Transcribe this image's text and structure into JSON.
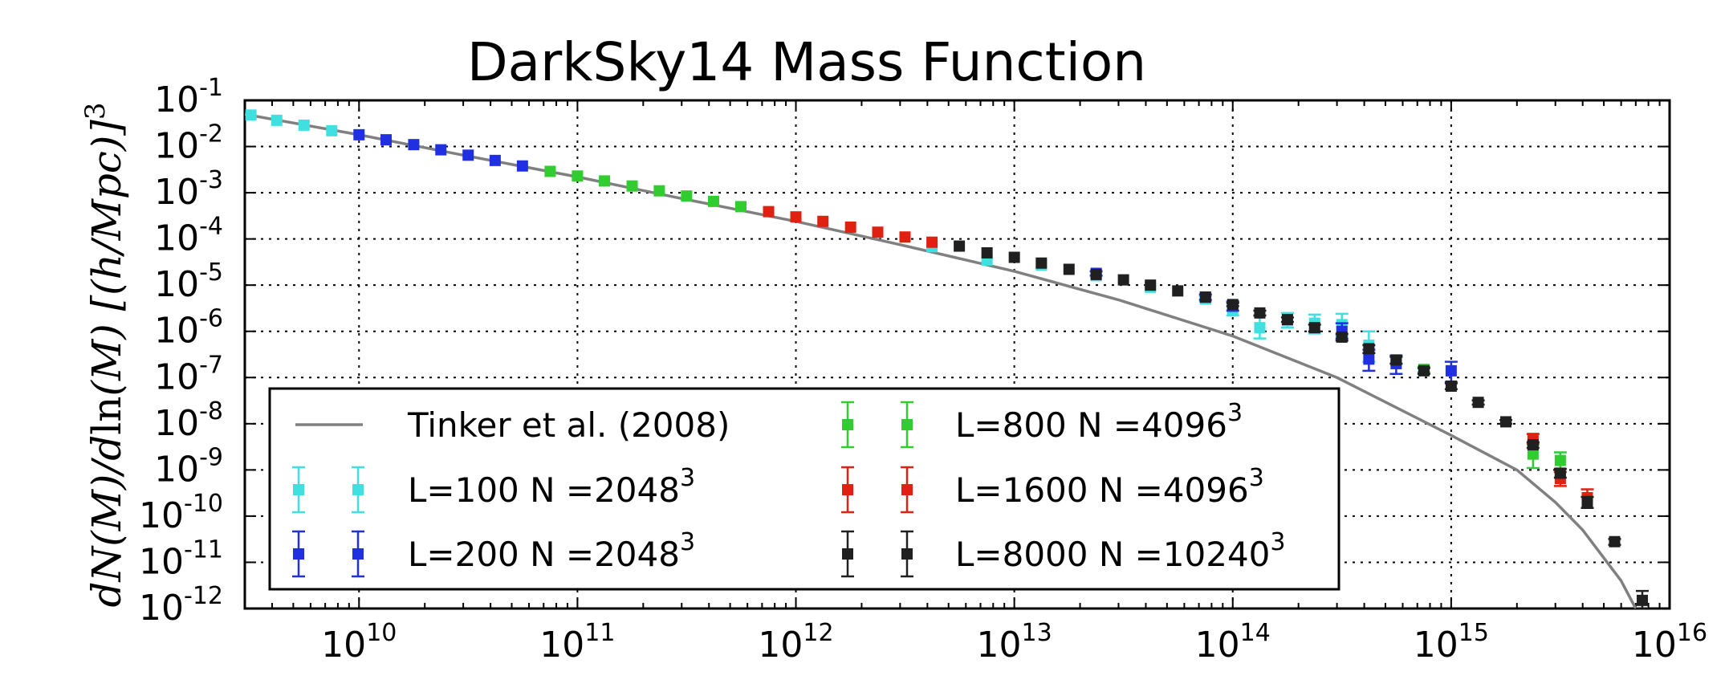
{
  "chart_data": {
    "type": "scatter",
    "title": "DarkSky14 Mass Function",
    "ylabel": {
      "parts": [
        "dN(M)/d",
        "ln",
        "(M) [(h/Mpc)]",
        "3"
      ]
    },
    "xlabel": "",
    "log_x": true,
    "log_y": true,
    "xlim": [
      3000000000.0,
      1e+16
    ],
    "ylim": [
      1e-12,
      0.1
    ],
    "grid": true,
    "legend_position": "lower-left",
    "xticks": [
      {
        "base": "10",
        "exp": "10",
        "value": 10000000000.0
      },
      {
        "base": "10",
        "exp": "11",
        "value": 100000000000.0
      },
      {
        "base": "10",
        "exp": "12",
        "value": 1000000000000.0
      },
      {
        "base": "10",
        "exp": "13",
        "value": 10000000000000.0
      },
      {
        "base": "10",
        "exp": "14",
        "value": 100000000000000.0
      },
      {
        "base": "10",
        "exp": "15",
        "value": 1000000000000000.0
      },
      {
        "base": "10",
        "exp": "16",
        "value": 1e+16
      }
    ],
    "yticks": [
      {
        "base": "10",
        "exp": "-1",
        "value": 0.1
      },
      {
        "base": "10",
        "exp": "-2",
        "value": 0.01
      },
      {
        "base": "10",
        "exp": "-3",
        "value": 0.001
      },
      {
        "base": "10",
        "exp": "-4",
        "value": 0.0001
      },
      {
        "base": "10",
        "exp": "-5",
        "value": 1e-05
      },
      {
        "base": "10",
        "exp": "-6",
        "value": 1e-06
      },
      {
        "base": "10",
        "exp": "-7",
        "value": 1e-07
      },
      {
        "base": "10",
        "exp": "-8",
        "value": 1e-08
      },
      {
        "base": "10",
        "exp": "-9",
        "value": 1e-09
      },
      {
        "base": "10",
        "exp": "-10",
        "value": 1e-10
      },
      {
        "base": "10",
        "exp": "-11",
        "value": 1e-11
      },
      {
        "base": "10",
        "exp": "-12",
        "value": 1e-12
      }
    ],
    "model": {
      "name": "Tinker et al. (2008)",
      "color": "#808080",
      "x": [
        3000000000.0,
        10000000000.0,
        30000000000.0,
        100000000000.0,
        300000000000.0,
        1000000000000.0,
        3000000000000.0,
        10000000000000.0,
        30000000000000.0,
        100000000000000.0,
        300000000000000.0,
        1000000000000000.0,
        2000000000000000.0,
        3000000000000000.0,
        4000000000000000.0,
        6000000000000000.0,
        8000000000000000.0
      ],
      "y": [
        0.05,
        0.018,
        0.0065,
        0.0022,
        0.00075,
        0.00024,
        7.5e-05,
        2e-05,
        4.8e-06,
        7.9e-07,
        1e-07,
        5.6e-09,
        1e-09,
        2e-10,
        5e-11,
        4e-12,
        3e-13
      ]
    },
    "series": [
      {
        "name": "L=100 N =2048",
        "name_exp": "3",
        "color": "#40e0e0",
        "points": [
          {
            "x": 3200000000.0,
            "y": 0.048,
            "lo": 0.048,
            "hi": 0.048
          },
          {
            "x": 4200000000.0,
            "y": 0.037,
            "lo": 0.037,
            "hi": 0.037
          },
          {
            "x": 5600000000.0,
            "y": 0.029,
            "lo": 0.029,
            "hi": 0.029
          },
          {
            "x": 7500000000.0,
            "y": 0.022,
            "lo": 0.022,
            "hi": 0.022
          },
          {
            "x": 4200000000000.0,
            "y": 6.8e-05,
            "lo": 6.8e-05,
            "hi": 6.8e-05
          },
          {
            "x": 7500000000000.0,
            "y": 3.5e-05,
            "lo": 3.5e-05,
            "hi": 3.5e-05
          },
          {
            "x": 13300000000000.0,
            "y": 2.7e-05,
            "lo": 2.7e-05,
            "hi": 2.7e-05
          },
          {
            "x": 23700000000000.0,
            "y": 1.6e-05,
            "lo": 1.6e-05,
            "hi": 1.6e-05
          },
          {
            "x": 42000000000000.0,
            "y": 9e-06,
            "lo": 9e-06,
            "hi": 9e-06
          },
          {
            "x": 75000000000000.0,
            "y": 5e-06,
            "lo": 4.5e-06,
            "hi": 5.8e-06
          },
          {
            "x": 100000000000000.0,
            "y": 3e-06,
            "lo": 2.2e-06,
            "hi": 4.5e-06
          },
          {
            "x": 133000000000000.0,
            "y": 1.2e-06,
            "lo": 7e-07,
            "hi": 2.2e-06
          },
          {
            "x": 178000000000000.0,
            "y": 1.7e-06,
            "lo": 1.2e-06,
            "hi": 2.5e-06
          },
          {
            "x": 237000000000000.0,
            "y": 1.5e-06,
            "lo": 9e-07,
            "hi": 2.3e-06
          },
          {
            "x": 316000000000000.0,
            "y": 1.4e-06,
            "lo": 8e-07,
            "hi": 2.4e-06
          },
          {
            "x": 420000000000000.0,
            "y": 5e-07,
            "lo": 2.2e-07,
            "hi": 1e-06
          }
        ]
      },
      {
        "name": "L=200 N =2048",
        "name_exp": "3",
        "color": "#2030e0",
        "points": [
          {
            "x": 10000000000.0,
            "y": 0.018,
            "lo": 0.018,
            "hi": 0.018
          },
          {
            "x": 13300000000.0,
            "y": 0.014,
            "lo": 0.014,
            "hi": 0.014
          },
          {
            "x": 17800000000.0,
            "y": 0.011,
            "lo": 0.011,
            "hi": 0.011
          },
          {
            "x": 23700000000.0,
            "y": 0.0085,
            "lo": 0.0085,
            "hi": 0.0085
          },
          {
            "x": 31600000000.0,
            "y": 0.0065,
            "lo": 0.0065,
            "hi": 0.0065
          },
          {
            "x": 42000000000.0,
            "y": 0.005,
            "lo": 0.005,
            "hi": 0.005
          },
          {
            "x": 56000000000.0,
            "y": 0.0038,
            "lo": 0.0038,
            "hi": 0.0038
          },
          {
            "x": 23700000000000.0,
            "y": 1.8e-05,
            "lo": 1.6e-05,
            "hi": 2e-05
          },
          {
            "x": 75000000000000.0,
            "y": 5.5e-06,
            "lo": 4.8e-06,
            "hi": 6.3e-06
          },
          {
            "x": 100000000000000.0,
            "y": 3.5e-06,
            "lo": 2.8e-06,
            "hi": 4.4e-06
          },
          {
            "x": 316000000000000.0,
            "y": 1e-06,
            "lo": 7e-07,
            "hi": 1.5e-06
          },
          {
            "x": 420000000000000.0,
            "y": 2.5e-07,
            "lo": 1.4e-07,
            "hi": 4e-07
          },
          {
            "x": 560000000000000.0,
            "y": 2e-07,
            "lo": 1.2e-07,
            "hi": 3e-07
          },
          {
            "x": 1000000000000000.0,
            "y": 1.4e-07,
            "lo": 8e-08,
            "hi": 2.2e-07
          }
        ]
      },
      {
        "name": "L=800   N =4096",
        "name_exp": "3",
        "color": "#30cc30",
        "points": [
          {
            "x": 75000000000.0,
            "y": 0.0029,
            "lo": 0.0029,
            "hi": 0.0029
          },
          {
            "x": 100000000000.0,
            "y": 0.0023,
            "lo": 0.0023,
            "hi": 0.0023
          },
          {
            "x": 133000000000.0,
            "y": 0.0018,
            "lo": 0.0018,
            "hi": 0.0018
          },
          {
            "x": 178000000000.0,
            "y": 0.0014,
            "lo": 0.0014,
            "hi": 0.0014
          },
          {
            "x": 237000000000.0,
            "y": 0.0011,
            "lo": 0.0011,
            "hi": 0.0011
          },
          {
            "x": 316000000000.0,
            "y": 0.00085,
            "lo": 0.00085,
            "hi": 0.00085
          },
          {
            "x": 420000000000.0,
            "y": 0.00065,
            "lo": 0.00065,
            "hi": 0.00065
          },
          {
            "x": 560000000000.0,
            "y": 0.0005,
            "lo": 0.0005,
            "hi": 0.0005
          },
          {
            "x": 750000000000000.0,
            "y": 1.5e-07,
            "lo": 1.3e-07,
            "hi": 1.7e-07
          },
          {
            "x": 2370000000000000.0,
            "y": 2.2e-09,
            "lo": 1.1e-09,
            "hi": 3.5e-09
          },
          {
            "x": 3160000000000000.0,
            "y": 1.6e-09,
            "lo": 9e-10,
            "hi": 2.4e-09
          }
        ]
      },
      {
        "name": "L=1600 N =4096",
        "name_exp": "3",
        "color": "#e02010",
        "points": [
          {
            "x": 750000000000.0,
            "y": 0.00039,
            "lo": 0.00039,
            "hi": 0.00039
          },
          {
            "x": 1000000000000.0,
            "y": 0.0003,
            "lo": 0.0003,
            "hi": 0.0003
          },
          {
            "x": 1330000000000.0,
            "y": 0.00024,
            "lo": 0.00024,
            "hi": 0.00024
          },
          {
            "x": 1780000000000.0,
            "y": 0.00018,
            "lo": 0.00018,
            "hi": 0.00018
          },
          {
            "x": 2370000000000.0,
            "y": 0.00014,
            "lo": 0.00014,
            "hi": 0.00014
          },
          {
            "x": 3160000000000.0,
            "y": 0.00011,
            "lo": 0.00011,
            "hi": 0.00011
          },
          {
            "x": 4200000000000.0,
            "y": 8.5e-05,
            "lo": 8.5e-05,
            "hi": 8.5e-05
          },
          {
            "x": 2370000000000000.0,
            "y": 4.8e-09,
            "lo": 3.8e-09,
            "hi": 6e-09
          },
          {
            "x": 3160000000000000.0,
            "y": 6.5e-10,
            "lo": 4.5e-10,
            "hi": 9e-10
          },
          {
            "x": 4200000000000000.0,
            "y": 2.5e-10,
            "lo": 1.5e-10,
            "hi": 3.8e-10
          }
        ]
      },
      {
        "name": "L=8000 N =10240",
        "name_exp": "3",
        "color": "#202020",
        "points": [
          {
            "x": 5600000000000.0,
            "y": 7e-05,
            "lo": 7e-05,
            "hi": 7e-05
          },
          {
            "x": 7500000000000.0,
            "y": 5e-05,
            "lo": 5e-05,
            "hi": 5e-05
          },
          {
            "x": 10000000000000.0,
            "y": 4e-05,
            "lo": 4e-05,
            "hi": 4e-05
          },
          {
            "x": 13300000000000.0,
            "y": 3e-05,
            "lo": 3e-05,
            "hi": 3e-05
          },
          {
            "x": 17800000000000.0,
            "y": 2.2e-05,
            "lo": 2.2e-05,
            "hi": 2.2e-05
          },
          {
            "x": 23700000000000.0,
            "y": 1.7e-05,
            "lo": 1.7e-05,
            "hi": 1.7e-05
          },
          {
            "x": 31600000000000.0,
            "y": 1.3e-05,
            "lo": 1.3e-05,
            "hi": 1.3e-05
          },
          {
            "x": 42000000000000.0,
            "y": 1e-05,
            "lo": 1e-05,
            "hi": 1e-05
          },
          {
            "x": 56000000000000.0,
            "y": 7.5e-06,
            "lo": 7.5e-06,
            "hi": 7.5e-06
          },
          {
            "x": 75000000000000.0,
            "y": 5.5e-06,
            "lo": 5.5e-06,
            "hi": 5.5e-06
          },
          {
            "x": 100000000000000.0,
            "y": 3.8e-06,
            "lo": 3.5e-06,
            "hi": 4.1e-06
          },
          {
            "x": 133000000000000.0,
            "y": 2.5e-06,
            "lo": 2.2e-06,
            "hi": 2.8e-06
          },
          {
            "x": 178000000000000.0,
            "y": 1.8e-06,
            "lo": 1.6e-06,
            "hi": 2e-06
          },
          {
            "x": 237000000000000.0,
            "y": 1.2e-06,
            "lo": 1e-06,
            "hi": 1.4e-06
          },
          {
            "x": 316000000000000.0,
            "y": 7.5e-07,
            "lo": 6.3e-07,
            "hi": 8.8e-07
          },
          {
            "x": 420000000000000.0,
            "y": 4.2e-07,
            "lo": 3.4e-07,
            "hi": 5e-07
          },
          {
            "x": 560000000000000.0,
            "y": 2.4e-07,
            "lo": 2e-07,
            "hi": 2.8e-07
          },
          {
            "x": 750000000000000.0,
            "y": 1.4e-07,
            "lo": 1.2e-07,
            "hi": 1.6e-07
          },
          {
            "x": 1000000000000000.0,
            "y": 6.5e-08,
            "lo": 5.6e-08,
            "hi": 7.5e-08
          },
          {
            "x": 1330000000000000.0,
            "y": 2.9e-08,
            "lo": 2.6e-08,
            "hi": 3.2e-08
          },
          {
            "x": 1780000000000000.0,
            "y": 1.1e-08,
            "lo": 1e-08,
            "hi": 1.2e-08
          },
          {
            "x": 2370000000000000.0,
            "y": 3.5e-09,
            "lo": 3e-09,
            "hi": 4e-09
          },
          {
            "x": 3160000000000000.0,
            "y": 8.5e-10,
            "lo": 6.8e-10,
            "hi": 1.05e-09
          },
          {
            "x": 4200000000000000.0,
            "y": 2e-10,
            "lo": 1.5e-10,
            "hi": 2.6e-10
          },
          {
            "x": 5600000000000000.0,
            "y": 2.8e-11,
            "lo": 2.4e-11,
            "hi": 3.2e-11
          },
          {
            "x": 7500000000000000.0,
            "y": 1.5e-12,
            "lo": 1e-12,
            "hi": 2.4e-12
          }
        ]
      }
    ]
  }
}
